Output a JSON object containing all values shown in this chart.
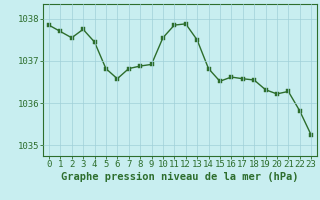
{
  "x": [
    0,
    1,
    2,
    3,
    4,
    5,
    6,
    7,
    8,
    9,
    10,
    11,
    12,
    13,
    14,
    15,
    16,
    17,
    18,
    19,
    20,
    21,
    22,
    23
  ],
  "y": [
    1037.85,
    1037.7,
    1037.55,
    1037.75,
    1037.45,
    1036.82,
    1036.58,
    1036.82,
    1036.88,
    1036.92,
    1037.55,
    1037.85,
    1037.88,
    1037.5,
    1036.82,
    1036.52,
    1036.62,
    1036.58,
    1036.55,
    1036.32,
    1036.22,
    1036.28,
    1035.82,
    1035.25
  ],
  "line_color": "#2d6e2d",
  "marker_color": "#2d6e2d",
  "bg_color": "#c8eef0",
  "plot_bg_color": "#c8eef0",
  "grid_color": "#a0d0d8",
  "axis_color": "#2d6e2d",
  "tick_color": "#2d6e2d",
  "label_color": "#2d6e2d",
  "bottom_label": "Graphe pression niveau de la mer (hPa)",
  "ylim": [
    1034.75,
    1038.35
  ],
  "yticks": [
    1035,
    1036,
    1037,
    1038
  ],
  "xticks": [
    0,
    1,
    2,
    3,
    4,
    5,
    6,
    7,
    8,
    9,
    10,
    11,
    12,
    13,
    14,
    15,
    16,
    17,
    18,
    19,
    20,
    21,
    22,
    23
  ],
  "tick_fontsize": 6.5,
  "title_fontsize": 7.5,
  "linewidth": 1.0,
  "markersize": 2.5
}
